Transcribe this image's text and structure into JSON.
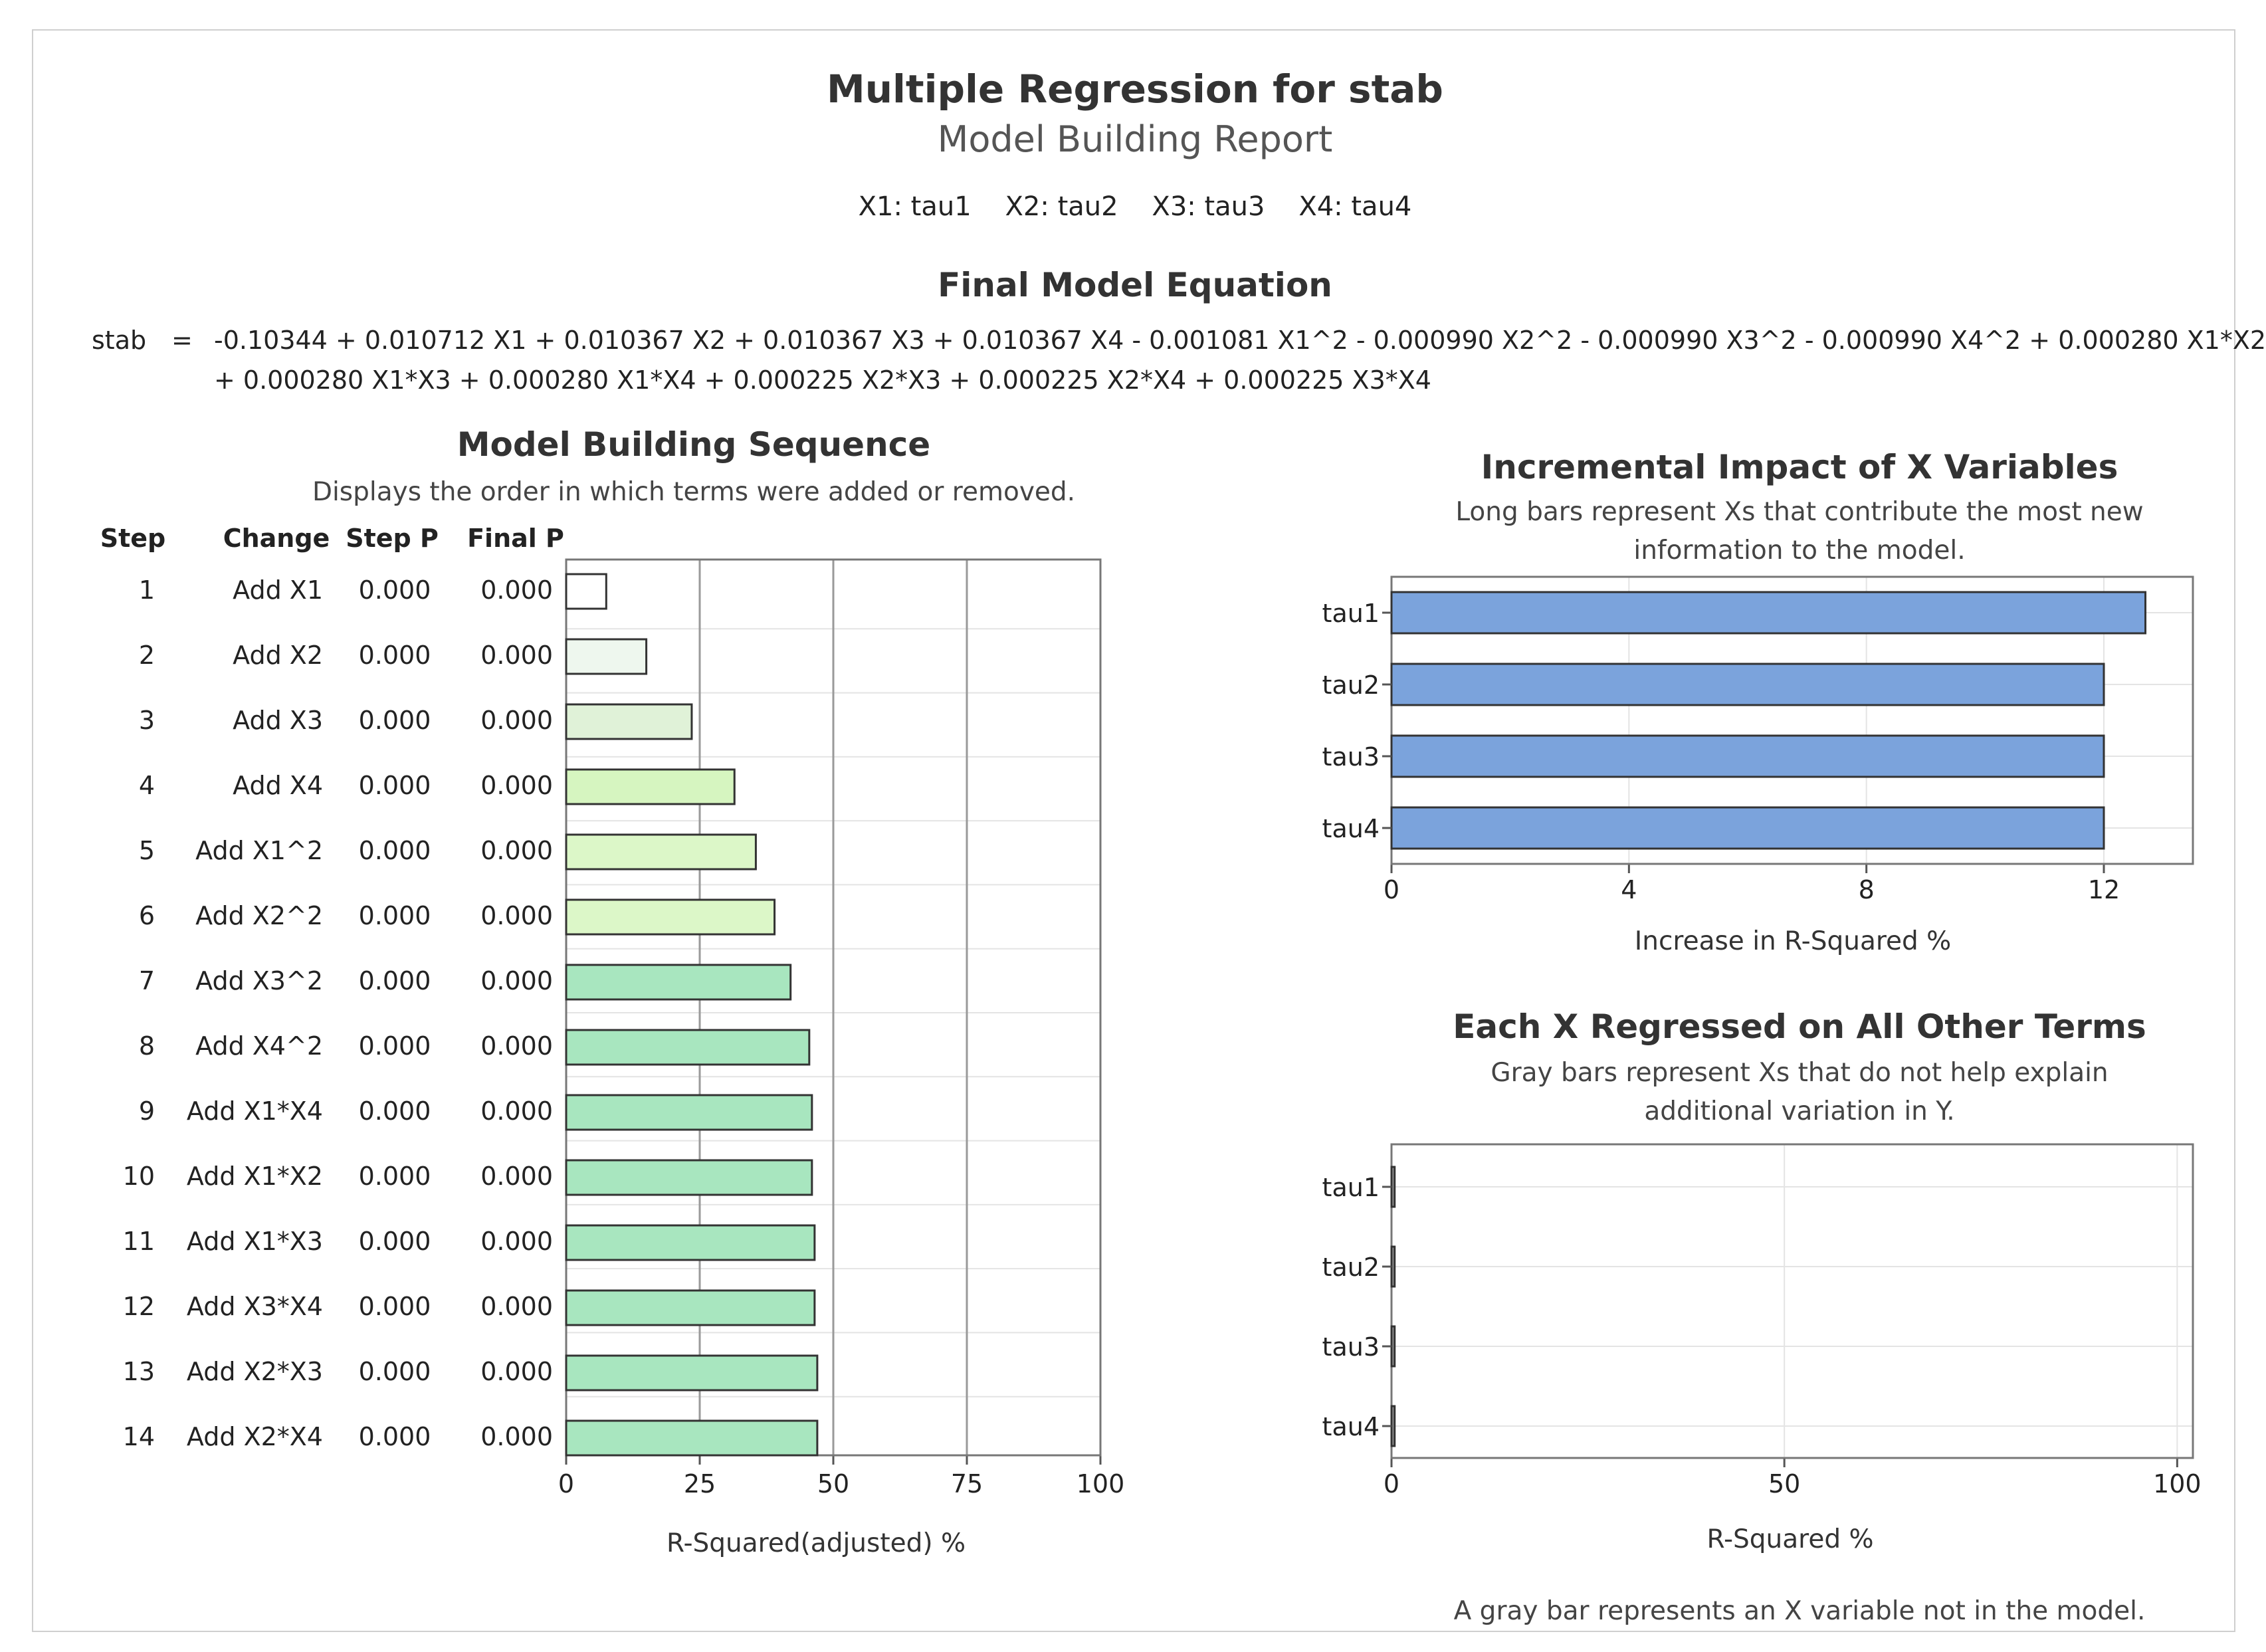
{
  "header": {
    "title": "Multiple Regression for stab",
    "subtitle": "Model Building Report",
    "variable_map": "X1: tau1    X2: tau2    X3: tau3    X4: tau4"
  },
  "equation": {
    "title": "Final Model Equation",
    "lhs": "stab",
    "eq_sign": "=",
    "line1": "-0.10344 + 0.010712 X1 + 0.010367 X2 + 0.010367 X3 + 0.010367 X4 - 0.001081 X1^2 - 0.000990 X2^2 - 0.000990 X3^2 - 0.000990 X4^2 + 0.000280 X1*X2",
    "line2": "+ 0.000280 X1*X3 + 0.000280 X1*X4 + 0.000225 X2*X3 + 0.000225 X2*X4 + 0.000225 X3*X4"
  },
  "sequence": {
    "title": "Model Building Sequence",
    "subtitle": "Displays the order in which terms were added or removed.",
    "columns": [
      "Step",
      "Change",
      "Step P",
      "Final P"
    ],
    "rows": [
      {
        "step": "1",
        "change": "Add X1",
        "step_p": "0.000",
        "final_p": "0.000"
      },
      {
        "step": "2",
        "change": "Add X2",
        "step_p": "0.000",
        "final_p": "0.000"
      },
      {
        "step": "3",
        "change": "Add X3",
        "step_p": "0.000",
        "final_p": "0.000"
      },
      {
        "step": "4",
        "change": "Add X4",
        "step_p": "0.000",
        "final_p": "0.000"
      },
      {
        "step": "5",
        "change": "Add X1^2",
        "step_p": "0.000",
        "final_p": "0.000"
      },
      {
        "step": "6",
        "change": "Add X2^2",
        "step_p": "0.000",
        "final_p": "0.000"
      },
      {
        "step": "7",
        "change": "Add X3^2",
        "step_p": "0.000",
        "final_p": "0.000"
      },
      {
        "step": "8",
        "change": "Add X4^2",
        "step_p": "0.000",
        "final_p": "0.000"
      },
      {
        "step": "9",
        "change": "Add X1*X4",
        "step_p": "0.000",
        "final_p": "0.000"
      },
      {
        "step": "10",
        "change": "Add X1*X2",
        "step_p": "0.000",
        "final_p": "0.000"
      },
      {
        "step": "11",
        "change": "Add X1*X3",
        "step_p": "0.000",
        "final_p": "0.000"
      },
      {
        "step": "12",
        "change": "Add X3*X4",
        "step_p": "0.000",
        "final_p": "0.000"
      },
      {
        "step": "13",
        "change": "Add X2*X3",
        "step_p": "0.000",
        "final_p": "0.000"
      },
      {
        "step": "14",
        "change": "Add X2*X4",
        "step_p": "0.000",
        "final_p": "0.000"
      }
    ]
  },
  "impact": {
    "title": "Incremental Impact of X Variables",
    "subtitle1": "Long bars represent Xs that contribute the most new",
    "subtitle2": "information to the model."
  },
  "regressed": {
    "title": "Each X Regressed on All Other Terms",
    "subtitle1": "Gray bars represent Xs that do not help explain",
    "subtitle2": "additional variation in Y.",
    "footnote": "A gray bar represents an X variable not in the model."
  },
  "chart_data": [
    {
      "id": "sequence",
      "type": "bar",
      "orientation": "horizontal",
      "categories": [
        "1",
        "2",
        "3",
        "4",
        "5",
        "6",
        "7",
        "8",
        "9",
        "10",
        "11",
        "12",
        "13",
        "14"
      ],
      "values": [
        7.5,
        15,
        23.5,
        31.5,
        35.5,
        39,
        42,
        45.5,
        46,
        46,
        46.5,
        46.5,
        47,
        47
      ],
      "bar_colors": [
        "#ffffff",
        "#eef7ee",
        "#e0f2d8",
        "#d6f5c0",
        "#dcf7c8",
        "#dcf7c8",
        "#a8e6bf",
        "#a8e6bf",
        "#a8e6bf",
        "#a8e6bf",
        "#a8e6bf",
        "#a8e6bf",
        "#a8e6bf",
        "#a8e6bf"
      ],
      "xlabel": "R-Squared(adjusted) %",
      "xticks": [
        "0",
        "25",
        "50",
        "75",
        "100"
      ],
      "xlim": [
        0,
        100
      ]
    },
    {
      "id": "impact",
      "type": "bar",
      "orientation": "horizontal",
      "categories": [
        "tau1",
        "tau2",
        "tau3",
        "tau4"
      ],
      "values": [
        12.7,
        12.0,
        12.0,
        12.0
      ],
      "bar_color": "#7ba3dc",
      "xlabel": "Increase in R-Squared %",
      "xticks": [
        "0",
        "4",
        "8",
        "12"
      ],
      "xlim": [
        0,
        13.5
      ]
    },
    {
      "id": "regressed",
      "type": "bar",
      "orientation": "horizontal",
      "categories": [
        "tau1",
        "tau2",
        "tau3",
        "tau4"
      ],
      "values": [
        0.4,
        0.4,
        0.4,
        0.4
      ],
      "bar_color": "#999999",
      "xlabel": "R-Squared %",
      "xticks": [
        "0",
        "50",
        "100"
      ],
      "xlim": [
        0,
        102
      ]
    }
  ]
}
